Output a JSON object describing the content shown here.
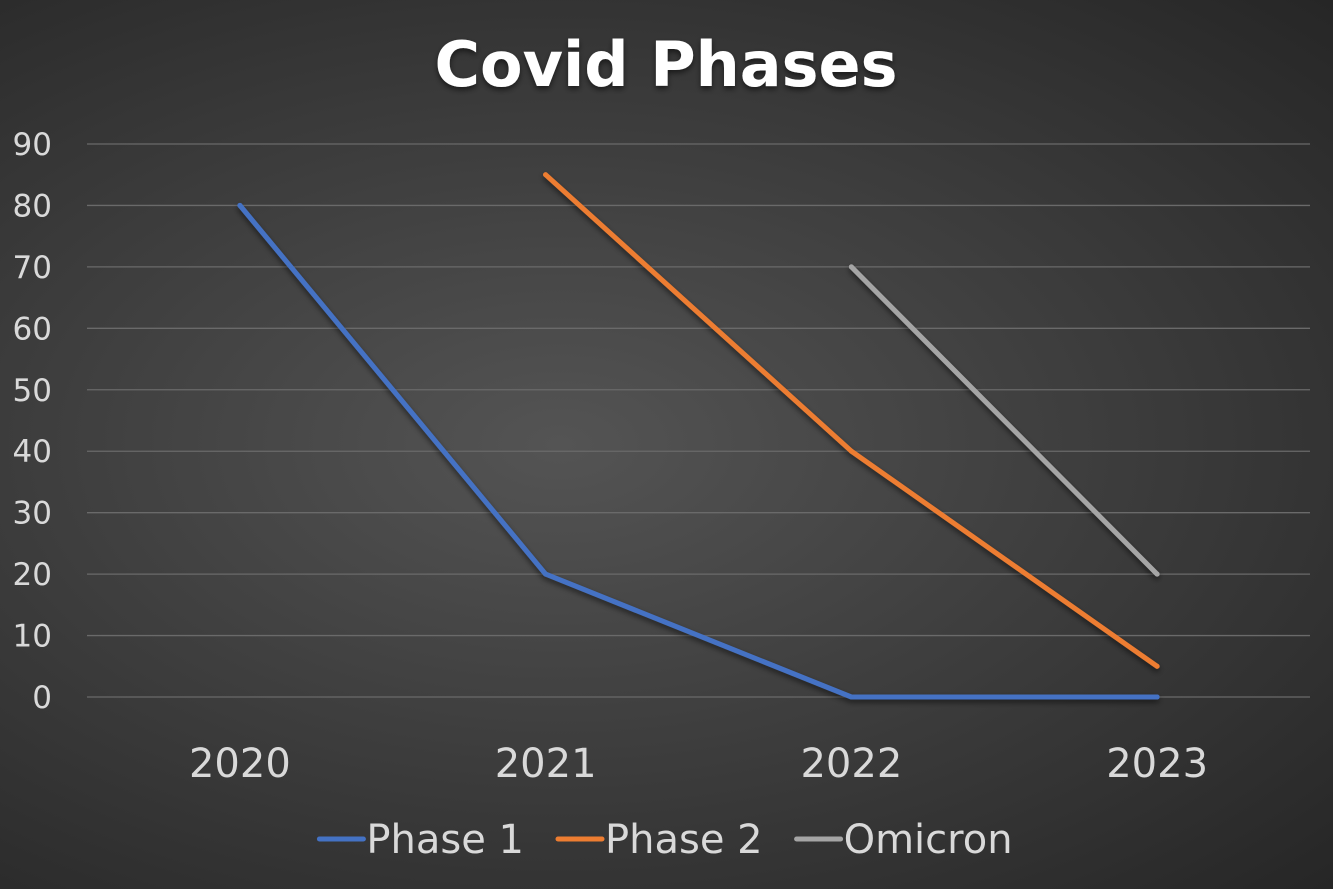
{
  "chart_data": {
    "type": "line",
    "title": "Covid Phases",
    "categories": [
      "2020",
      "2021",
      "2022",
      "2023"
    ],
    "ylim": [
      0,
      90
    ],
    "yticks": [
      0,
      10,
      20,
      30,
      40,
      50,
      60,
      70,
      80,
      90
    ],
    "grid": true,
    "legend_position": "bottom",
    "series": [
      {
        "name": "Phase 1",
        "color": "#4472c4",
        "values": [
          80,
          20,
          0,
          0
        ]
      },
      {
        "name": "Phase 2",
        "color": "#ed7d31",
        "values": [
          null,
          85,
          40,
          5
        ]
      },
      {
        "name": "Omicron",
        "color": "#a5a5a5",
        "values": [
          null,
          null,
          70,
          20
        ]
      }
    ]
  }
}
